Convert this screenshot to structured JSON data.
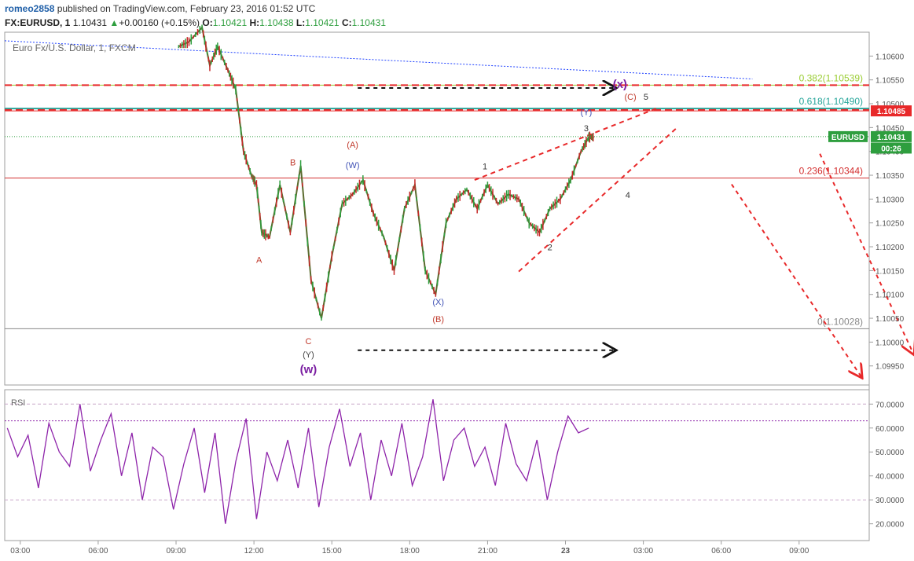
{
  "header": {
    "user": "romeo2858",
    "published": " published on TradingView.com, February 23, 2016 01:52 UTC",
    "symbol": "FX:EURUSD, 1",
    "last": "1.10431",
    "change_arrow": "▲",
    "change": "+0.00160 (+0.15%)",
    "o_label": "O:",
    "o": "1.10421",
    "h_label": "H:",
    "h": "1.10438",
    "l_label": "L:",
    "l": "1.10421",
    "c_label": "C:",
    "c": "1.10431"
  },
  "chart_data": {
    "type": "line",
    "title": "Euro Fx/U.S. Dollar, 1, FXCM",
    "price_ylim": [
      1.0991,
      1.1065
    ],
    "price_ticks": [
      "1.10600",
      "1.10550",
      "1.10500",
      "1.10450",
      "1.10400",
      "1.10350",
      "1.10300",
      "1.10250",
      "1.10200",
      "1.10150",
      "1.10100",
      "1.10050",
      "1.10000",
      "1.09950"
    ],
    "time_ticks": [
      {
        "t": 3,
        "label": "03:00"
      },
      {
        "t": 6,
        "label": "06:00"
      },
      {
        "t": 9,
        "label": "09:00"
      },
      {
        "t": 12,
        "label": "12:00"
      },
      {
        "t": 15,
        "label": "15:00"
      },
      {
        "t": 18,
        "label": "18:00"
      },
      {
        "t": 21,
        "label": "21:00"
      },
      {
        "t": 24,
        "label": "23"
      },
      {
        "t": 27,
        "label": "03:00"
      },
      {
        "t": 30,
        "label": "06:00"
      },
      {
        "t": 33,
        "label": "09:00"
      }
    ],
    "time_range": [
      2.4,
      35.7
    ],
    "price_series": {
      "name": "EURUSD",
      "x": [
        9.1,
        9.5,
        10.0,
        10.3,
        10.6,
        11.0,
        11.3,
        11.6,
        11.9,
        12.1,
        12.3,
        12.6,
        13.0,
        13.4,
        13.8,
        14.2,
        14.6,
        15.0,
        15.4,
        15.8,
        16.2,
        16.6,
        17.0,
        17.4,
        17.8,
        18.2,
        18.6,
        19.0,
        19.4,
        19.8,
        20.2,
        20.6,
        21.0,
        21.4,
        21.8,
        22.2,
        22.6,
        23.0,
        23.4,
        23.8,
        24.2,
        24.6,
        24.9,
        25.1
      ],
      "y": [
        1.1062,
        1.1063,
        1.1066,
        1.1058,
        1.1062,
        1.1057,
        1.1053,
        1.104,
        1.1035,
        1.1033,
        1.1023,
        1.1022,
        1.1033,
        1.1023,
        1.1037,
        1.1013,
        1.1005,
        1.1018,
        1.1029,
        1.1031,
        1.1034,
        1.1027,
        1.1022,
        1.1015,
        1.1028,
        1.1033,
        1.1015,
        1.101,
        1.1025,
        1.103,
        1.1032,
        1.1028,
        1.1033,
        1.1029,
        1.1031,
        1.103,
        1.1025,
        1.1023,
        1.1028,
        1.103,
        1.1034,
        1.104,
        1.1043,
        1.1043
      ]
    },
    "levels": [
      {
        "label": "",
        "value": 1.10485,
        "color": "#e8292a",
        "style": "solid-thin"
      },
      {
        "label": "0.382(1.10539)",
        "value": 1.10539,
        "color": "#9acd32",
        "style": "fib"
      },
      {
        "label": "0.618(1.10490)",
        "value": 1.1049,
        "color": "#26a69a",
        "style": "fib"
      },
      {
        "label": "0.236(1.10344)",
        "value": 1.10344,
        "color": "#d32f2f",
        "style": "fib"
      },
      {
        "label": "0(1.10028)",
        "value": 1.10028,
        "color": "#888888",
        "style": "fib"
      },
      {
        "label": "",
        "value": 1.10431,
        "color": "#2e9e3e",
        "style": "dotted"
      }
    ],
    "price_tags": [
      {
        "text": "1.10485",
        "value": 1.10485,
        "bg": "#e8292a"
      },
      {
        "text": "EURUSD",
        "value": 1.10431,
        "bg": "#2e9e3e"
      },
      {
        "text": "1.10431",
        "value": 1.10431,
        "bg": "#2e9e3e"
      },
      {
        "text": "00:26",
        "value": 1.10407,
        "bg": "#2e9e3e"
      }
    ],
    "wave_labels": [
      {
        "text": "A",
        "t": 12.2,
        "v": 1.10166,
        "color": "#c0392b"
      },
      {
        "text": "B",
        "t": 13.5,
        "v": 1.10371,
        "color": "#c0392b"
      },
      {
        "text": "C",
        "t": 14.1,
        "v": 1.09996,
        "color": "#c0392b"
      },
      {
        "text": "(Y)",
        "t": 14.1,
        "v": 1.09968,
        "color": "#444444"
      },
      {
        "text": "(w)",
        "t": 14.1,
        "v": 1.09935,
        "color": "#7b1fa2",
        "bold": true
      },
      {
        "text": "(A)",
        "t": 15.8,
        "v": 1.10408,
        "color": "#c0392b"
      },
      {
        "text": "(W)",
        "t": 15.8,
        "v": 1.10365,
        "color": "#3f51b5"
      },
      {
        "text": "(X)",
        "t": 19.1,
        "v": 1.10078,
        "color": "#3f51b5"
      },
      {
        "text": "(B)",
        "t": 19.1,
        "v": 1.10042,
        "color": "#c0392b"
      },
      {
        "text": "1",
        "t": 20.9,
        "v": 1.10362,
        "color": "#333333"
      },
      {
        "text": "2",
        "t": 23.4,
        "v": 1.10193,
        "color": "#333333"
      },
      {
        "text": "3",
        "t": 24.8,
        "v": 1.10442,
        "color": "#333333"
      },
      {
        "text": "(Y)",
        "t": 24.8,
        "v": 1.10476,
        "color": "#3f51b5"
      },
      {
        "text": "4",
        "t": 26.4,
        "v": 1.10302,
        "color": "#333333"
      },
      {
        "text": "(C)",
        "t": 26.5,
        "v": 1.10508,
        "color": "#c0392b"
      },
      {
        "text": "5",
        "t": 27.1,
        "v": 1.10508,
        "color": "#333333"
      },
      {
        "text": "(x)",
        "t": 26.1,
        "v": 1.10533,
        "color": "#7b1fa2",
        "bold": true
      }
    ],
    "trend_lines": [
      {
        "from": [
          2.4,
          1.10632
        ],
        "to": [
          31.2,
          1.10552
        ],
        "color": "#1e40ff",
        "style": "dotted"
      },
      {
        "from": [
          20.5,
          1.1034
        ],
        "to": [
          27.5,
          1.1049
        ],
        "color": "#e8292a",
        "style": "dashed"
      },
      {
        "from": [
          22.2,
          1.10148
        ],
        "to": [
          28.3,
          1.1045
        ],
        "color": "#e8292a",
        "style": "dashed"
      }
    ],
    "arrows": [
      {
        "from": [
          16.0,
          1.10533
        ],
        "to": [
          25.9,
          1.10533
        ],
        "color": "#111111"
      },
      {
        "from": [
          16.0,
          1.09983
        ],
        "to": [
          25.9,
          1.09983
        ],
        "color": "#111111"
      },
      {
        "from": [
          30.4,
          1.10331
        ],
        "to": [
          35.4,
          1.09927
        ],
        "color": "#e8292a"
      },
      {
        "from": [
          33.8,
          1.10395
        ],
        "to": [
          37.4,
          1.09976
        ],
        "color": "#e8292a"
      }
    ],
    "hlines_dashed": [
      {
        "value": 1.10539,
        "color": "#e8292a"
      },
      {
        "value": 1.10487,
        "color": "#e8292a"
      }
    ],
    "rsi": {
      "title": "RSI",
      "ylim": [
        13,
        76
      ],
      "ticks": [
        "70.0000",
        "60.0000",
        "50.0000",
        "40.0000",
        "30.0000",
        "20.0000"
      ],
      "bands": [
        70,
        30
      ],
      "current": 63,
      "x": [
        2.5,
        2.9,
        3.3,
        3.7,
        4.1,
        4.5,
        4.9,
        5.3,
        5.7,
        6.1,
        6.5,
        6.9,
        7.3,
        7.7,
        8.1,
        8.5,
        8.9,
        9.3,
        9.7,
        10.1,
        10.5,
        10.9,
        11.3,
        11.7,
        12.1,
        12.5,
        12.9,
        13.3,
        13.7,
        14.1,
        14.5,
        14.9,
        15.3,
        15.7,
        16.1,
        16.5,
        16.9,
        17.3,
        17.7,
        18.1,
        18.5,
        18.9,
        19.3,
        19.7,
        20.1,
        20.5,
        20.9,
        21.3,
        21.7,
        22.1,
        22.5,
        22.9,
        23.3,
        23.7,
        24.1,
        24.5,
        24.9
      ],
      "y": [
        60,
        48,
        57,
        35,
        62,
        50,
        44,
        70,
        42,
        55,
        66,
        40,
        58,
        30,
        52,
        48,
        26,
        45,
        60,
        33,
        58,
        20,
        46,
        64,
        22,
        50,
        38,
        55,
        35,
        60,
        27,
        52,
        68,
        44,
        58,
        30,
        55,
        40,
        62,
        36,
        48,
        72,
        38,
        55,
        60,
        44,
        52,
        36,
        62,
        45,
        38,
        55,
        30,
        50,
        65,
        58,
        60
      ]
    }
  }
}
